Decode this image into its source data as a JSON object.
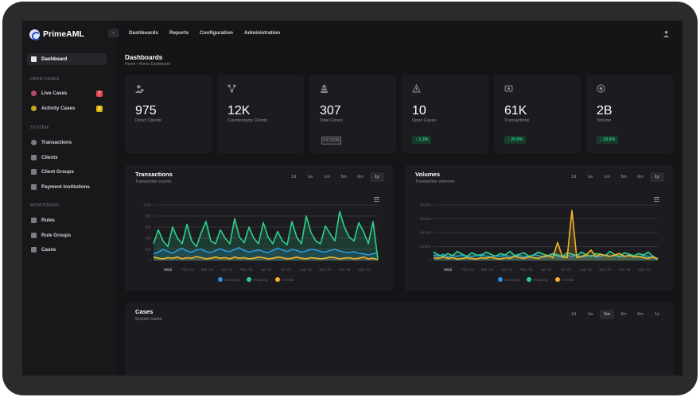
{
  "brand": {
    "name": "PrimeAML"
  },
  "topnav": [
    "Dashboards",
    "Reports",
    "Configuration",
    "Administration"
  ],
  "sidebar": {
    "dashboard": "Dashboard",
    "sections": [
      {
        "title": "OPEN CASES",
        "items": [
          {
            "label": "Live Cases",
            "badge": "7",
            "badge_color": "#e5484d"
          },
          {
            "label": "Activity Cases",
            "badge": "3",
            "badge_color": "#e5b80b"
          }
        ]
      },
      {
        "title": "SYSTEM",
        "items": [
          {
            "label": "Transactions"
          },
          {
            "label": "Clients"
          },
          {
            "label": "Client Groups"
          },
          {
            "label": "Payment Institutions"
          }
        ]
      },
      {
        "title": "MONITORING",
        "items": [
          {
            "label": "Rules"
          },
          {
            "label": "Rule Groups"
          },
          {
            "label": "Cases"
          }
        ]
      }
    ]
  },
  "page": {
    "title": "Dashboards",
    "breadcrumb": "Home  •  Home Dashboard"
  },
  "kpis": [
    {
      "value": "975",
      "label": "Direct Clients",
      "icon": "users-icon"
    },
    {
      "value": "12K",
      "label": "Counterparty Clients",
      "icon": "network-icon"
    },
    {
      "value": "307",
      "label": "Total Cases",
      "icon": "cases-icon",
      "stamp": "FICSON"
    },
    {
      "value": "10",
      "label": "Open Cases",
      "icon": "alert-icon",
      "badge": "↑ 1.3%"
    },
    {
      "value": "61K",
      "label": "Transactions",
      "icon": "transfer-icon",
      "badge": "↑ 20.0%"
    },
    {
      "value": "2B",
      "label": "Volume",
      "icon": "money-icon",
      "badge": "↓ 15.0%"
    }
  ],
  "ranges": [
    "1d",
    "1w",
    "1m",
    "3m",
    "6m",
    "1y"
  ],
  "panels": {
    "transactions": {
      "title": "Transactions",
      "subtitle": "Transaction counts",
      "active_range": "1y"
    },
    "volumes": {
      "title": "Volumes",
      "subtitle": "Transaction volumes",
      "active_range": "1y"
    },
    "cases": {
      "title": "Cases",
      "subtitle": "System cases",
      "active_range": "1m"
    }
  },
  "chart_data": [
    {
      "type": "area",
      "title": "Transactions",
      "x_labels": [
        "2024",
        "Feb '24",
        "Mar '24",
        "Apr '24",
        "May '24",
        "Jun '24",
        "Jul '24",
        "Aug '24",
        "Sep '24",
        "Oct '24",
        "Nov '24"
      ],
      "y_ticks": [
        "0",
        "200",
        "400",
        "600",
        "800",
        "1000"
      ],
      "ylim": [
        0,
        1000
      ],
      "series": [
        {
          "name": "Incoming",
          "color": "#2b8ee8",
          "values": [
            120,
            150,
            200,
            160,
            130,
            180,
            220,
            170,
            150,
            190,
            200,
            160,
            140,
            180,
            210,
            170,
            160,
            200,
            230,
            180,
            150,
            170,
            190,
            160,
            140,
            180,
            220,
            190,
            160,
            200,
            180,
            150,
            170,
            200,
            190,
            160,
            150,
            180,
            200,
            170,
            150,
            140,
            160,
            130,
            120,
            100,
            120,
            140
          ]
        },
        {
          "name": "Outgoing",
          "color": "#2ecf8a",
          "values": [
            300,
            550,
            350,
            250,
            600,
            400,
            300,
            650,
            350,
            250,
            500,
            700,
            350,
            300,
            550,
            400,
            300,
            750,
            420,
            320,
            600,
            400,
            300,
            680,
            420,
            300,
            520,
            350,
            280,
            700,
            420,
            300,
            800,
            500,
            350,
            300,
            620,
            480,
            350,
            880,
            600,
            420,
            350,
            680,
            520,
            300,
            700,
            20
          ]
        },
        {
          "name": "Internal",
          "color": "#f0b429",
          "values": [
            60,
            40,
            30,
            50,
            40,
            60,
            30,
            50,
            40,
            70,
            50,
            30,
            40,
            60,
            40,
            50,
            30,
            60,
            40,
            50,
            30,
            40,
            60,
            50,
            30,
            40,
            60,
            50,
            30,
            40,
            60,
            40,
            30,
            50,
            40,
            30,
            40,
            60,
            50,
            30,
            40,
            50,
            30,
            40,
            60,
            30,
            40,
            10
          ]
        }
      ]
    },
    {
      "type": "area",
      "title": "Volumes",
      "x_labels": [
        "2024",
        "Feb '24",
        "Mar '24",
        "Apr '24",
        "May '24",
        "Jun '24",
        "Jul '24",
        "Aug '24",
        "Sep '24",
        "Oct '24",
        "Nov '24"
      ],
      "y_ticks": [
        "0",
        "200000",
        "400000",
        "600000",
        "800000"
      ],
      "ylim": [
        0,
        800000
      ],
      "series": [
        {
          "name": "Incoming",
          "color": "#2b8ee8",
          "values": [
            80000,
            60000,
            90000,
            50000,
            70000,
            60000,
            80000,
            50000,
            60000,
            70000,
            90000,
            60000,
            50000,
            70000,
            60000,
            80000,
            50000,
            60000,
            70000,
            50000,
            60000,
            80000,
            70000,
            50000,
            60000,
            90000,
            60000,
            50000,
            70000,
            60000,
            80000,
            50000,
            60000,
            70000,
            50000,
            60000,
            80000,
            60000,
            70000,
            50000,
            60000,
            80000,
            60000,
            50000,
            70000,
            60000,
            40000,
            30000
          ]
        },
        {
          "name": "Outgoing",
          "color": "#2ecf8a",
          "values": [
            120000,
            80000,
            60000,
            100000,
            70000,
            130000,
            90000,
            60000,
            110000,
            80000,
            70000,
            120000,
            90000,
            60000,
            100000,
            80000,
            130000,
            70000,
            90000,
            110000,
            60000,
            80000,
            120000,
            90000,
            70000,
            100000,
            80000,
            60000,
            110000,
            90000,
            70000,
            120000,
            80000,
            60000,
            100000,
            90000,
            70000,
            130000,
            80000,
            60000,
            110000,
            90000,
            70000,
            100000,
            80000,
            120000,
            60000,
            20000
          ]
        },
        {
          "name": "Internal",
          "color": "#f0b429",
          "values": [
            40000,
            30000,
            50000,
            30000,
            40000,
            20000,
            30000,
            40000,
            30000,
            20000,
            40000,
            30000,
            50000,
            30000,
            20000,
            40000,
            30000,
            60000,
            40000,
            30000,
            50000,
            40000,
            30000,
            60000,
            70000,
            40000,
            260000,
            50000,
            40000,
            720000,
            40000,
            60000,
            80000,
            150000,
            60000,
            90000,
            70000,
            60000,
            80000,
            100000,
            60000,
            70000,
            50000,
            60000,
            40000,
            30000,
            50000,
            20000
          ]
        }
      ]
    }
  ]
}
